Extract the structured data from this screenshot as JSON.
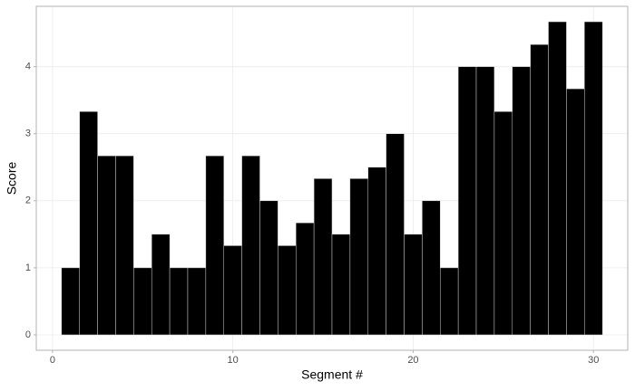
{
  "chart_data": {
    "type": "bar",
    "x_label": "Segment #",
    "y_label": "Score",
    "x": [
      1,
      2,
      3,
      4,
      5,
      6,
      7,
      8,
      9,
      10,
      11,
      12,
      13,
      14,
      15,
      16,
      17,
      18,
      19,
      20,
      21,
      22,
      23,
      24,
      25,
      26,
      27,
      28,
      29,
      30
    ],
    "values": [
      1,
      3.33,
      2.67,
      2.67,
      1,
      1.5,
      1,
      1,
      2.67,
      1.33,
      2.67,
      2,
      1.33,
      1.67,
      2.33,
      1.5,
      2.33,
      2.5,
      3,
      1.5,
      2,
      1,
      4,
      4,
      3.33,
      4,
      4.33,
      4.67,
      3.67,
      4.67
    ],
    "color": "#000000",
    "xlim": [
      -0.9,
      31.9
    ],
    "xticks": [
      0,
      10,
      20,
      30
    ],
    "ylim": [
      -0.23,
      4.9
    ],
    "yticks": [
      0,
      1,
      2,
      3,
      4
    ],
    "grid": true
  }
}
